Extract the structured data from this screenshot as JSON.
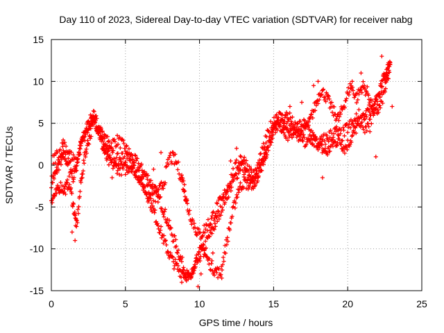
{
  "chart_data": {
    "type": "scatter",
    "title": "Day 110 of 2023, Sidereal Day-to-day VTEC variation (SDTVAR) for receiver nabg",
    "xlabel": "GPS time / hours",
    "ylabel": "SDTVAR / TECUs",
    "xlim": [
      0,
      25
    ],
    "ylim": [
      -15,
      15
    ],
    "x_ticks": [
      0,
      5,
      10,
      15,
      20,
      25
    ],
    "y_ticks": [
      -15,
      -10,
      -5,
      0,
      5,
      10,
      15
    ],
    "x_tick_labels": [
      "0",
      "5",
      "10",
      "15",
      "20",
      "25"
    ],
    "y_tick_labels": [
      "-15",
      "-10",
      "-5",
      "0",
      "5",
      "10",
      "15"
    ],
    "grid": true,
    "legend": "none",
    "marker": "plus",
    "marker_color": "#ff0000",
    "series": [
      {
        "values_trace_a": [
          [
            0.0,
            -2.0
          ],
          [
            0.3,
            -1.0
          ],
          [
            0.6,
            0.5
          ],
          [
            0.9,
            1.0
          ],
          [
            1.2,
            0.0
          ],
          [
            1.5,
            -1.5
          ],
          [
            1.8,
            1.0
          ],
          [
            2.1,
            3.0
          ],
          [
            2.4,
            4.5
          ],
          [
            2.7,
            5.5
          ],
          [
            3.0,
            5.0
          ],
          [
            3.3,
            4.0
          ],
          [
            3.6,
            3.0
          ],
          [
            4.0,
            2.5
          ],
          [
            4.5,
            3.0
          ],
          [
            5.0,
            2.0
          ],
          [
            5.4,
            1.0
          ],
          [
            5.8,
            0.2
          ],
          [
            6.2,
            -0.8
          ],
          [
            6.6,
            -1.8
          ],
          [
            7.0,
            -3.0
          ],
          [
            7.4,
            -4.5
          ],
          [
            7.8,
            -6.5
          ],
          [
            8.2,
            -8.5
          ],
          [
            8.6,
            -10.5
          ],
          [
            9.0,
            -12.5
          ],
          [
            9.3,
            -13.8
          ],
          [
            9.6,
            -12.5
          ],
          [
            10.0,
            -11.0
          ],
          [
            10.4,
            -9.5
          ],
          [
            10.8,
            -8.0
          ],
          [
            11.2,
            -6.5
          ],
          [
            11.6,
            -4.5
          ],
          [
            12.0,
            -3.0
          ],
          [
            12.4,
            -1.5
          ],
          [
            12.8,
            0.0
          ],
          [
            13.2,
            -1.0
          ],
          [
            13.6,
            -2.5
          ],
          [
            14.0,
            -1.0
          ],
          [
            14.4,
            1.0
          ],
          [
            14.8,
            3.0
          ],
          [
            15.2,
            5.0
          ],
          [
            15.6,
            4.5
          ],
          [
            16.0,
            3.5
          ],
          [
            16.5,
            4.5
          ],
          [
            17.0,
            5.0
          ],
          [
            17.4,
            4.0
          ],
          [
            17.8,
            3.0
          ],
          [
            18.2,
            2.0
          ],
          [
            18.6,
            1.5
          ],
          [
            19.0,
            2.5
          ],
          [
            19.4,
            3.0
          ],
          [
            19.8,
            2.0
          ],
          [
            20.2,
            3.0
          ],
          [
            20.6,
            4.5
          ],
          [
            21.0,
            5.5
          ],
          [
            21.4,
            6.5
          ],
          [
            21.8,
            7.0
          ],
          [
            22.2,
            9.0
          ],
          [
            22.6,
            11.0
          ],
          [
            22.9,
            12.5
          ]
        ],
        "values_trace_b": [
          [
            0.0,
            -4.0
          ],
          [
            0.3,
            -3.5
          ],
          [
            0.6,
            -2.5
          ],
          [
            0.9,
            -3.0
          ],
          [
            1.2,
            -2.0
          ],
          [
            1.5,
            -5.0
          ],
          [
            1.7,
            -7.5
          ],
          [
            2.0,
            -2.0
          ],
          [
            2.3,
            1.5
          ],
          [
            2.6,
            3.5
          ],
          [
            2.9,
            5.5
          ],
          [
            3.2,
            4.0
          ],
          [
            3.5,
            2.0
          ],
          [
            3.8,
            0.5
          ],
          [
            4.2,
            0.0
          ],
          [
            4.6,
            -0.5
          ],
          [
            5.0,
            -0.5
          ],
          [
            5.4,
            0.0
          ],
          [
            5.8,
            -1.0
          ],
          [
            6.2,
            -2.5
          ],
          [
            6.6,
            -4.0
          ],
          [
            7.0,
            -6.0
          ],
          [
            7.4,
            -8.0
          ],
          [
            7.8,
            -10.0
          ],
          [
            8.2,
            -11.5
          ],
          [
            8.6,
            -12.5
          ],
          [
            9.0,
            -13.0
          ],
          [
            9.4,
            -13.5
          ],
          [
            9.8,
            -11.0
          ],
          [
            10.2,
            -10.0
          ],
          [
            10.6,
            -11.5
          ],
          [
            11.0,
            -12.5
          ],
          [
            11.4,
            -13.0
          ],
          [
            11.8,
            -9.5
          ],
          [
            12.2,
            -6.0
          ],
          [
            12.6,
            -3.0
          ],
          [
            13.0,
            -2.0
          ],
          [
            13.4,
            -2.5
          ],
          [
            13.8,
            -1.5
          ],
          [
            14.2,
            0.0
          ],
          [
            14.6,
            2.0
          ],
          [
            15.0,
            4.0
          ],
          [
            15.4,
            5.5
          ],
          [
            15.8,
            5.0
          ],
          [
            16.2,
            4.0
          ],
          [
            16.6,
            3.5
          ],
          [
            17.0,
            4.0
          ],
          [
            17.4,
            5.0
          ],
          [
            17.8,
            7.0
          ],
          [
            18.2,
            9.0
          ],
          [
            18.6,
            8.0
          ],
          [
            19.0,
            6.5
          ],
          [
            19.4,
            5.5
          ],
          [
            19.8,
            7.5
          ],
          [
            20.2,
            9.5
          ],
          [
            20.6,
            8.0
          ],
          [
            21.0,
            9.5
          ],
          [
            21.4,
            8.5
          ],
          [
            21.8,
            6.0
          ],
          [
            22.2,
            7.0
          ],
          [
            22.6,
            9.5
          ],
          [
            22.9,
            12.0
          ]
        ],
        "values_trace_c": [
          [
            0.1,
            0.5
          ],
          [
            0.5,
            1.5
          ],
          [
            0.9,
            2.5
          ],
          [
            1.3,
            1.0
          ],
          [
            1.7,
            0.0
          ],
          [
            2.0,
            2.5
          ],
          [
            2.4,
            4.0
          ],
          [
            2.8,
            6.0
          ],
          [
            3.2,
            4.5
          ],
          [
            3.6,
            2.5
          ],
          [
            4.0,
            1.5
          ],
          [
            4.4,
            0.5
          ],
          [
            4.8,
            1.0
          ],
          [
            5.2,
            0.5
          ],
          [
            5.6,
            -0.5
          ],
          [
            6.0,
            -1.5
          ],
          [
            6.4,
            -3.0
          ],
          [
            6.8,
            -4.0
          ],
          [
            7.2,
            -3.5
          ],
          [
            7.6,
            -2.0
          ],
          [
            8.0,
            1.0
          ],
          [
            8.4,
            0.5
          ],
          [
            8.8,
            -1.5
          ],
          [
            9.0,
            -3.0
          ],
          [
            9.2,
            -5.0
          ],
          [
            9.6,
            -7.0
          ],
          [
            10.0,
            -8.5
          ],
          [
            10.4,
            -7.5
          ],
          [
            10.8,
            -6.5
          ],
          [
            11.2,
            -5.0
          ],
          [
            11.6,
            -4.0
          ],
          [
            12.0,
            -2.0
          ],
          [
            12.4,
            -0.5
          ],
          [
            12.8,
            1.0
          ],
          [
            13.2,
            0.0
          ],
          [
            13.6,
            -1.5
          ],
          [
            14.0,
            0.0
          ],
          [
            14.4,
            2.5
          ],
          [
            14.8,
            4.5
          ],
          [
            15.2,
            6.0
          ],
          [
            15.6,
            5.5
          ],
          [
            16.0,
            6.0
          ],
          [
            16.4,
            4.5
          ],
          [
            16.8,
            3.5
          ],
          [
            17.2,
            2.5
          ],
          [
            17.6,
            3.0
          ],
          [
            18.0,
            2.5
          ],
          [
            18.4,
            3.0
          ],
          [
            18.8,
            3.5
          ],
          [
            19.2,
            4.0
          ],
          [
            19.6,
            3.5
          ],
          [
            20.0,
            4.5
          ],
          [
            20.4,
            5.0
          ],
          [
            20.8,
            6.0
          ],
          [
            21.2,
            4.5
          ],
          [
            21.6,
            5.5
          ],
          [
            22.0,
            8.0
          ],
          [
            22.4,
            10.0
          ],
          [
            22.8,
            11.5
          ]
        ],
        "values_outliers": [
          [
            0.8,
            3.0
          ],
          [
            1.6,
            -9.0
          ],
          [
            1.4,
            -8.0
          ],
          [
            4.1,
            -1.5
          ],
          [
            8.8,
            -14.0
          ],
          [
            9.9,
            -14.5
          ],
          [
            10.1,
            -13.0
          ],
          [
            10.9,
            -10.5
          ],
          [
            11.5,
            -13.5
          ],
          [
            16.9,
            7.5
          ],
          [
            17.1,
            4.5
          ],
          [
            17.7,
            9.5
          ],
          [
            18.0,
            10.0
          ],
          [
            20.3,
            10.0
          ],
          [
            20.9,
            11.0
          ],
          [
            21.5,
            4.0
          ],
          [
            21.9,
            1.0
          ],
          [
            22.3,
            13.0
          ],
          [
            22.7,
            12.0
          ],
          [
            23.0,
            7.0
          ],
          [
            12.1,
            0.5
          ],
          [
            12.5,
            2.0
          ],
          [
            13.5,
            -0.5
          ],
          [
            7.4,
            1.5
          ],
          [
            6.9,
            -0.5
          ],
          [
            18.3,
            -1.5
          ],
          [
            16.1,
            7.0
          ]
        ]
      }
    ]
  }
}
